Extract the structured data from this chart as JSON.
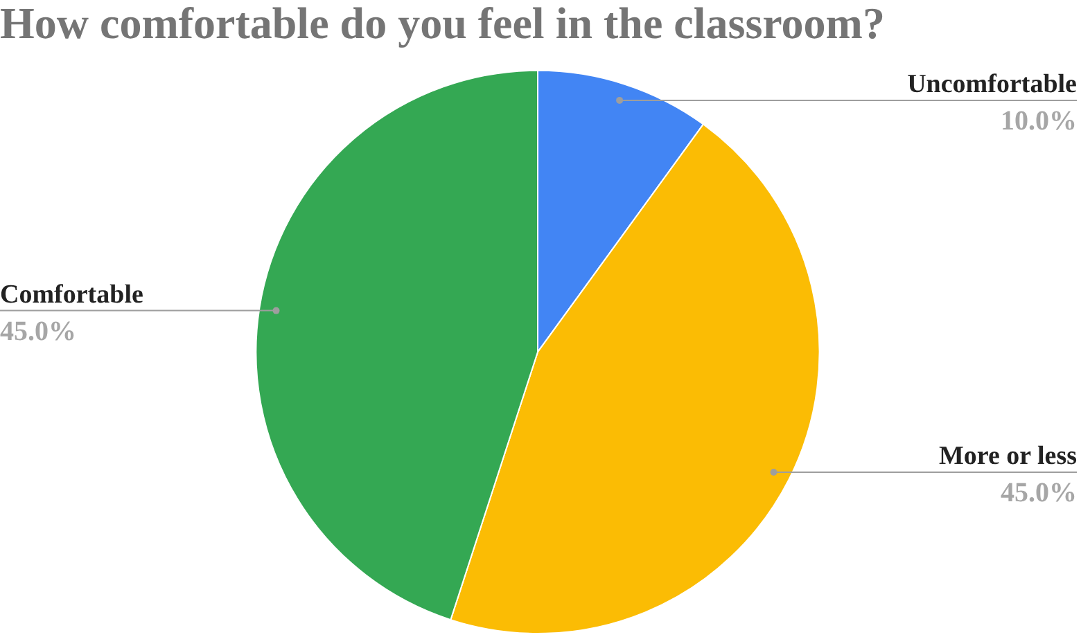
{
  "chart_data": {
    "type": "pie",
    "title": "How comfortable do you feel in the classroom?",
    "categories": [
      "Uncomfortable",
      "More or less",
      "Comfortable"
    ],
    "values": [
      10,
      45,
      45
    ],
    "colors": [
      "#4285f4",
      "#fbbc04",
      "#34a853"
    ],
    "value_labels": [
      "10.0%",
      "45.0%",
      "45.0%"
    ],
    "legend": false
  }
}
